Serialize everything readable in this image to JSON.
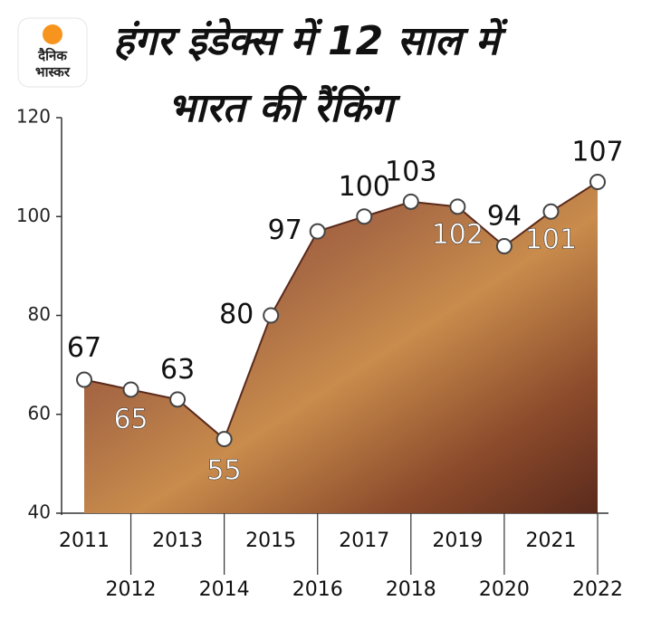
{
  "logo": [
    "दैनिक",
    "भास्कर"
  ],
  "chart_data": {
    "type": "area",
    "title": [
      "हंगर इंडेक्स में 12 साल में",
      "भारत की रैंकिंग"
    ],
    "categories": [
      "2011",
      "2012",
      "2013",
      "2014",
      "2015",
      "2016",
      "2017",
      "2018",
      "2019",
      "2020",
      "2021",
      "2022"
    ],
    "values": [
      67,
      65,
      63,
      55,
      80,
      97,
      100,
      103,
      102,
      94,
      101,
      107
    ],
    "color": "#a0522d",
    "ylim": [
      40,
      120
    ],
    "yticks": [
      40,
      60,
      80,
      100,
      120
    ]
  }
}
